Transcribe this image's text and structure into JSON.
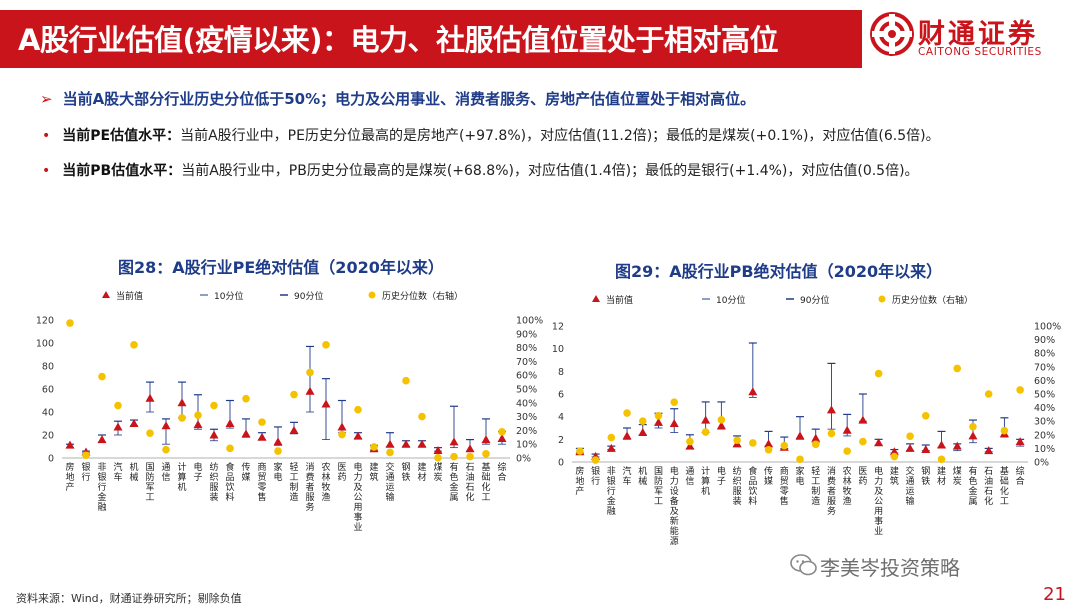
{
  "header": {
    "title": "A股行业估值(疫情以来)：电力、社服估值位置处于相对高位",
    "logo_cn": "财通证券",
    "logo_en": "CAITONG SECURITIES",
    "accent": "#c9141c"
  },
  "bullets": {
    "main": "当前A股大部分行业历史分位低于50%；电力及公用事业、消费者服务、房地产估值位置处于相对高位。",
    "pe_label": "当前PE估值水平：",
    "pe_text": "当前A股行业中，PE历史分位最高的是房地产(+97.8%)，对应估值(11.2倍)；最低的是煤炭(+0.1%)，对应估值(6.5倍)。",
    "pb_label": "当前PB估值水平：",
    "pb_text": "当前A股行业中，PB历史分位最高的是煤炭(+68.8%)，对应估值(1.4倍)；最低的是银行(+1.4%)，对应估值(0.5倍)。"
  },
  "footer": {
    "source": "资料来源：Wind，财通证券研究所；剔除负值",
    "page": "21",
    "watermark": "李美岑投资策略"
  },
  "chart_data": [
    {
      "type": "scatter",
      "title": "图28：A股行业PE绝对估值（2020年以来）",
      "legend": [
        "当前值",
        "10分位",
        "90分位",
        "历史分位数（右轴）"
      ],
      "ylim": [
        0,
        120
      ],
      "y_ticks": [
        "0",
        "20",
        "40",
        "60",
        "80",
        "100",
        "120"
      ],
      "y2lim": [
        0,
        100
      ],
      "y2_ticks": [
        "0%",
        "10%",
        "20%",
        "30%",
        "40%",
        "50%",
        "60%",
        "70%",
        "80%",
        "90%",
        "100%"
      ],
      "categories": [
        "房地产",
        "银行",
        "非银行金融",
        "汽车",
        "机械",
        "国防军工",
        "通信",
        "计算机",
        "电子",
        "纺织服装",
        "食品饮料",
        "传媒",
        "商贸零售",
        "家电",
        "轻工制造",
        "消费者服务",
        "农林牧渔",
        "医药",
        "电力及公用事业",
        "建筑",
        "交通运输",
        "钢铁",
        "建材",
        "煤炭",
        "有色金属",
        "石油石化",
        "基础化工",
        "综合"
      ],
      "series": [
        {
          "name": "当前值",
          "values": [
            11.2,
            5.2,
            16,
            27,
            30,
            52,
            28,
            48,
            29,
            20,
            30,
            21,
            18,
            14,
            24,
            58,
            47,
            27,
            19,
            8,
            12,
            12,
            12,
            6.5,
            14,
            8,
            16,
            17
          ]
        },
        {
          "name": "10分位",
          "values": [
            9,
            4.5,
            14,
            20,
            28,
            40,
            12,
            35,
            25,
            15,
            26,
            18,
            16,
            11,
            21,
            40,
            16,
            22,
            17,
            7,
            10,
            10,
            10,
            6,
            9,
            6,
            12,
            12
          ]
        },
        {
          "name": "90分位",
          "values": [
            12,
            6,
            20,
            32,
            33,
            66,
            34,
            66,
            55,
            25,
            50,
            34,
            22,
            27,
            31,
            97,
            69,
            50,
            22,
            11,
            22,
            15,
            15,
            9,
            45,
            16,
            34,
            23
          ]
        },
        {
          "name": "历史分位数（右轴）",
          "values": [
            97.8,
            2,
            59,
            38,
            82,
            18,
            6,
            29,
            31,
            38,
            7,
            43,
            26,
            5,
            46,
            62,
            82,
            17,
            35,
            8,
            4,
            56,
            30,
            0.1,
            1,
            1,
            3,
            19
          ]
        }
      ]
    },
    {
      "type": "scatter",
      "title": "图29：A股行业PB绝对估值（2020年以来）",
      "legend": [
        "当前值",
        "10分位",
        "90分位",
        "历史分位数（右轴）"
      ],
      "ylim": [
        0,
        12
      ],
      "y_ticks": [
        "0",
        "2",
        "4",
        "6",
        "8",
        "10",
        "12"
      ],
      "y2lim": [
        0,
        100
      ],
      "y2_ticks": [
        "0%",
        "10%",
        "20%",
        "30%",
        "40%",
        "50%",
        "60%",
        "70%",
        "80%",
        "90%",
        "100%"
      ],
      "categories": [
        "房地产",
        "银行",
        "非银行金融",
        "汽车",
        "机械",
        "国防军工",
        "电力设备及新能源",
        "通信",
        "计算机",
        "电子",
        "纺织服装",
        "食品饮料",
        "传媒",
        "商贸零售",
        "家电",
        "轻工制造",
        "消费者服务",
        "农林牧渔",
        "医药",
        "电力及公用事业",
        "建筑",
        "交通运输",
        "钢铁",
        "建材",
        "煤炭",
        "有色金属",
        "石油石化",
        "基础化工",
        "综合"
      ],
      "series": [
        {
          "name": "当前值",
          "values": [
            0.9,
            0.5,
            1.2,
            2.3,
            2.6,
            3.5,
            3.4,
            1.4,
            3.7,
            3.2,
            1.6,
            6.2,
            1.6,
            1.3,
            2.3,
            2.1,
            4.6,
            2.8,
            3.7,
            1.7,
            0.9,
            1.2,
            1.1,
            1.5,
            1.4,
            2.3,
            1.0,
            2.5,
            1.8
          ]
        },
        {
          "name": "10分位",
          "values": [
            0.8,
            0.45,
            1.1,
            2.0,
            2.4,
            3.0,
            2.6,
            1.2,
            2.6,
            2.9,
            1.4,
            5.7,
            1.4,
            1.2,
            2.0,
            1.7,
            2.9,
            2.3,
            3.6,
            1.5,
            0.8,
            1.0,
            1.0,
            1.3,
            1.0,
            1.7,
            0.9,
            2.2,
            1.4
          ]
        },
        {
          "name": "90分位",
          "values": [
            1.2,
            0.7,
            1.4,
            3.0,
            3.3,
            4.3,
            4.7,
            2.4,
            5.3,
            5.3,
            2.3,
            10.5,
            2.7,
            2.2,
            4.0,
            2.9,
            8.7,
            4.2,
            6.0,
            2.0,
            1.1,
            1.6,
            1.5,
            2.7,
            1.6,
            3.7,
            1.2,
            3.9,
            2.0
          ]
        },
        {
          "name": "历史分位数（右轴）",
          "values": [
            8,
            1.4,
            18,
            36,
            30,
            34,
            44,
            15,
            22,
            31,
            16,
            14,
            9,
            12,
            2,
            13,
            21,
            8,
            15,
            65,
            4,
            19,
            34,
            2,
            68.8,
            26,
            50,
            23,
            53
          ]
        }
      ]
    }
  ]
}
